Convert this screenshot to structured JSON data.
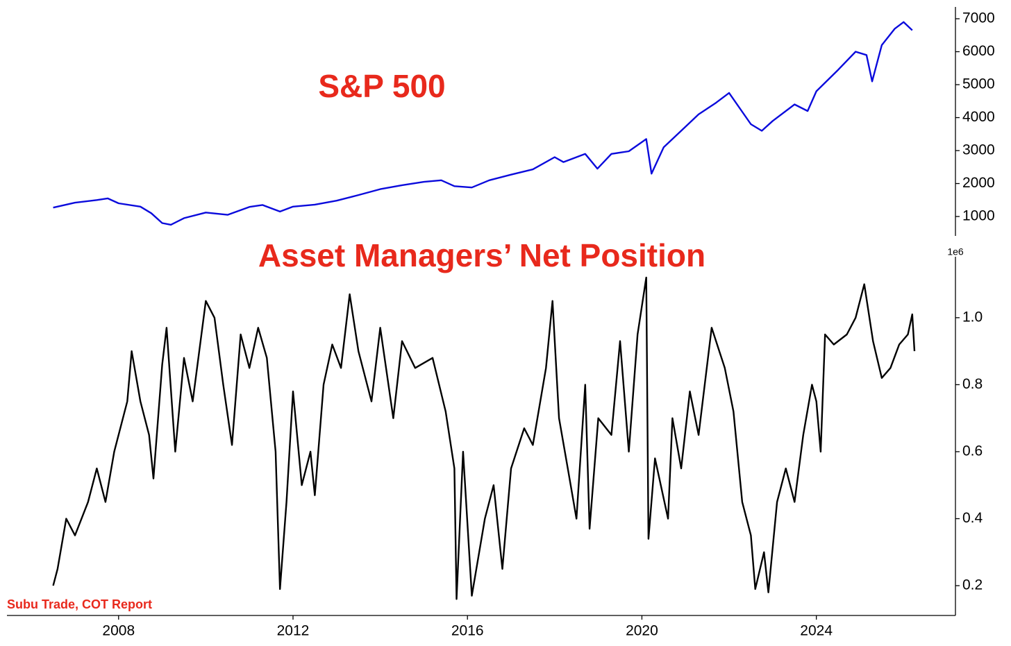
{
  "source": "Subu Trade, COT Report",
  "chart_data": [
    {
      "type": "line",
      "title": "S&P 500",
      "xlim": [
        2005.44,
        2027.19
      ],
      "ylim": [
        411,
        7358
      ],
      "yticks": [
        1000,
        2000,
        3000,
        4000,
        5000,
        6000,
        7000
      ],
      "series": [
        {
          "name": "S&P 500",
          "color": "#0a0adc",
          "x": [
            2006.5,
            2007,
            2007.5,
            2007.75,
            2008,
            2008.5,
            2008.75,
            2009,
            2009.2,
            2009.5,
            2010,
            2010.5,
            2011,
            2011.3,
            2011.7,
            2012,
            2012.5,
            2013,
            2013.5,
            2014,
            2014.5,
            2015,
            2015.4,
            2015.7,
            2016.1,
            2016.5,
            2017,
            2017.5,
            2018,
            2018.2,
            2018.7,
            2018.98,
            2019.3,
            2019.7,
            2020.1,
            2020.22,
            2020.5,
            2020.9,
            2021.3,
            2021.7,
            2022,
            2022.5,
            2022.75,
            2023,
            2023.5,
            2023.8,
            2024,
            2024.5,
            2024.9,
            2025.15,
            2025.28,
            2025.5,
            2025.8,
            2026.0,
            2026.2
          ],
          "values": [
            1270,
            1420,
            1500,
            1550,
            1400,
            1300,
            1100,
            800,
            750,
            950,
            1120,
            1050,
            1290,
            1350,
            1150,
            1300,
            1360,
            1480,
            1650,
            1830,
            1950,
            2050,
            2100,
            1920,
            1880,
            2100,
            2270,
            2430,
            2800,
            2650,
            2900,
            2450,
            2900,
            2980,
            3350,
            2300,
            3100,
            3600,
            4100,
            4450,
            4750,
            3800,
            3600,
            3900,
            4400,
            4200,
            4800,
            5450,
            6000,
            5900,
            5100,
            6200,
            6700,
            6900,
            6650
          ]
        }
      ]
    },
    {
      "type": "line",
      "title": "Asset Managers’ Net Position",
      "offset_label": "1e6",
      "xlim": [
        2005.44,
        2027.19
      ],
      "ylim": [
        0.111,
        1.182
      ],
      "xticks": [
        2008,
        2012,
        2016,
        2020,
        2024
      ],
      "yticks": [
        0.2,
        0.4,
        0.6,
        0.8,
        {
          "value": 1,
          "label": "1.0"
        }
      ],
      "series": [
        {
          "name": "Asset Managers’ Net Position",
          "color": "#000000",
          "x": [
            2006.5,
            2006.6,
            2006.8,
            2007,
            2007.3,
            2007.5,
            2007.7,
            2007.9,
            2008.2,
            2008.3,
            2008.5,
            2008.7,
            2008.8,
            2009,
            2009.1,
            2009.3,
            2009.5,
            2009.7,
            2009.9,
            2010,
            2010.2,
            2010.4,
            2010.6,
            2010.8,
            2011.0,
            2011.2,
            2011.4,
            2011.6,
            2011.7,
            2011.85,
            2012,
            2012.2,
            2012.4,
            2012.5,
            2012.7,
            2012.9,
            2013.1,
            2013.3,
            2013.5,
            2013.8,
            2014,
            2014.3,
            2014.5,
            2014.8,
            2015.2,
            2015.5,
            2015.7,
            2015.75,
            2015.9,
            2016.1,
            2016.4,
            2016.6,
            2016.8,
            2017.0,
            2017.3,
            2017.5,
            2017.8,
            2017.95,
            2018.1,
            2018.3,
            2018.5,
            2018.7,
            2018.8,
            2019,
            2019.3,
            2019.5,
            2019.7,
            2019.9,
            2020.1,
            2020.15,
            2020.3,
            2020.6,
            2020.7,
            2020.9,
            2021.1,
            2021.3,
            2021.6,
            2021.9,
            2022.1,
            2022.3,
            2022.5,
            2022.6,
            2022.8,
            2022.9,
            2023.1,
            2023.3,
            2023.5,
            2023.7,
            2023.9,
            2024.0,
            2024.1,
            2024.2,
            2024.4,
            2024.7,
            2024.9,
            2025.1,
            2025.3,
            2025.5,
            2025.7,
            2025.9,
            2026.1,
            2026.2,
            2026.25
          ],
          "values": [
            0.2,
            0.25,
            0.4,
            0.35,
            0.45,
            0.55,
            0.45,
            0.6,
            0.75,
            0.9,
            0.75,
            0.65,
            0.52,
            0.86,
            0.97,
            0.6,
            0.88,
            0.75,
            0.95,
            1.05,
            1.0,
            0.8,
            0.62,
            0.95,
            0.85,
            0.97,
            0.88,
            0.6,
            0.19,
            0.45,
            0.78,
            0.5,
            0.6,
            0.47,
            0.8,
            0.92,
            0.85,
            1.07,
            0.9,
            0.75,
            0.97,
            0.7,
            0.93,
            0.85,
            0.88,
            0.72,
            0.55,
            0.16,
            0.6,
            0.17,
            0.4,
            0.5,
            0.25,
            0.55,
            0.67,
            0.62,
            0.85,
            1.05,
            0.7,
            0.55,
            0.4,
            0.8,
            0.37,
            0.7,
            0.65,
            0.93,
            0.6,
            0.95,
            1.12,
            0.34,
            0.58,
            0.4,
            0.7,
            0.55,
            0.78,
            0.65,
            0.97,
            0.85,
            0.72,
            0.45,
            0.35,
            0.19,
            0.3,
            0.18,
            0.45,
            0.55,
            0.45,
            0.65,
            0.8,
            0.75,
            0.6,
            0.95,
            0.92,
            0.95,
            1.0,
            1.1,
            0.93,
            0.82,
            0.85,
            0.92,
            0.95,
            1.01,
            0.9
          ]
        }
      ]
    }
  ]
}
